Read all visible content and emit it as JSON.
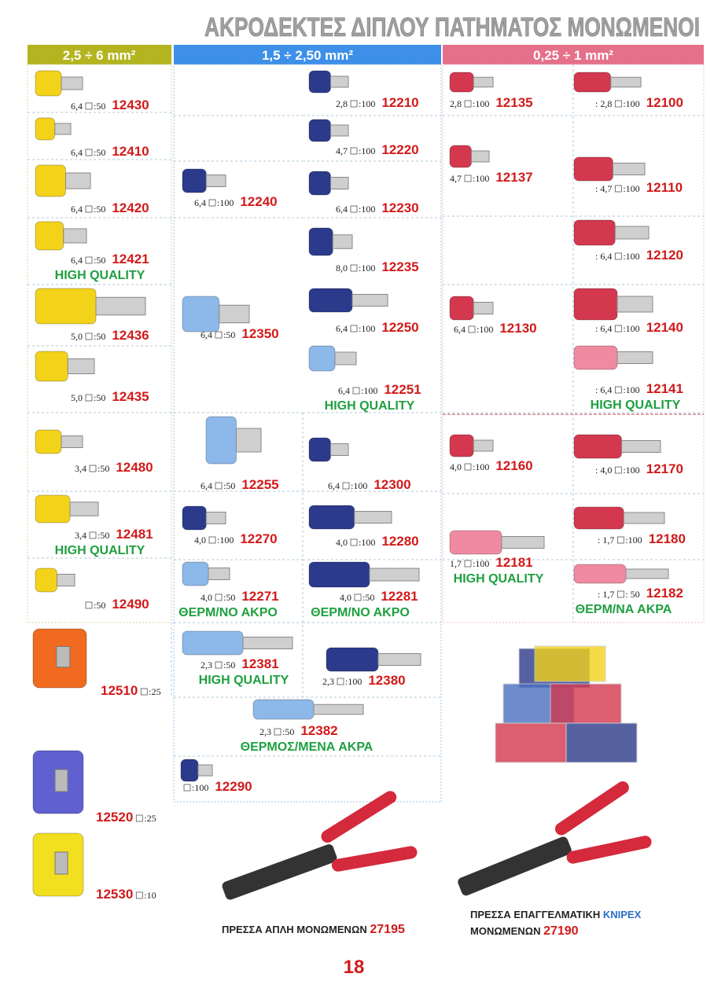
{
  "header": {
    "title": "ΑΚΡΟΔΕΚΤΕΣ ΔΙΠΛΟΥ ΠΑΤΗΜΑΤΟΣ ΜΟΝΩΜΕΝΟΙ"
  },
  "columns": [
    "2,5 ÷  6 mm²",
    "1,5 ÷  2,50 mm²",
    "0,25 ÷  1 mm²"
  ],
  "items": [
    {
      "size": "6,4",
      "qty": ":50",
      "code": "12430"
    },
    {
      "size": "6,4",
      "qty": ":50",
      "code": "12410"
    },
    {
      "size": "6,4",
      "qty": ":50",
      "code": "12420"
    },
    {
      "size": "6,4",
      "qty": ":50",
      "code": "12421",
      "badge": "HIGH QUALITY"
    },
    {
      "size": "5,0",
      "qty": ":50",
      "code": "12436"
    },
    {
      "size": "5,0",
      "qty": ":50",
      "code": "12435"
    },
    {
      "size": "3,4",
      "qty": ":50",
      "code": "12480"
    },
    {
      "size": "3,4",
      "qty": ":50",
      "code": "12481",
      "badge": "HIGH QUALITY"
    },
    {
      "qty": ":50",
      "code": "12490"
    },
    {
      "size": "6,4",
      "qty": ":100",
      "code": "12240"
    },
    {
      "size": "6,4",
      "qty": ":50",
      "code": "12350"
    },
    {
      "size": "6,4",
      "qty": ":50",
      "code": "12255"
    },
    {
      "size": "4,0",
      "qty": ":100",
      "code": "12270"
    },
    {
      "size": "4,0",
      "qty": ":50",
      "code": "12271",
      "badge": "ΘΕΡΜ/ΝΟ ΑΚΡΟ"
    },
    {
      "size": "2,3",
      "qty": ":50",
      "code": "12381",
      "badge": "HIGH QUALITY"
    },
    {
      "size": "2,3",
      "qty": ":50",
      "code": "12382",
      "badge": "ΘΕΡΜΟΣ/ΜΕΝΑ ΑΚΡΑ"
    },
    {
      "qty": ":100",
      "code": "12290"
    },
    {
      "size": "2,8",
      "qty": ":100",
      "code": "12210"
    },
    {
      "size": "4,7",
      "qty": ":100",
      "code": "12220"
    },
    {
      "size": "6,4",
      "qty": ":100",
      "code": "12230"
    },
    {
      "size": "8,0",
      "qty": ":100",
      "code": "12235"
    },
    {
      "size": "6,4",
      "qty": ":100",
      "code": "12250"
    },
    {
      "size": "6,4",
      "qty": ":100",
      "code": "12251",
      "badge": "HIGH QUALITY"
    },
    {
      "size": "6,4",
      "qty": ":100",
      "code": "12300"
    },
    {
      "size": "4,0",
      "qty": ":100",
      "code": "12280"
    },
    {
      "size": "4,0",
      "qty": ":50",
      "code": "12281",
      "badge": "ΘΕΡΜ/ΝΟ ΑΚΡΟ"
    },
    {
      "size": "2,3",
      "qty": ":100",
      "code": "12380"
    },
    {
      "size": "2,8",
      "qty": ":100",
      "code": "12135"
    },
    {
      "size": "4,7",
      "qty": ":100",
      "code": "12137"
    },
    {
      "size": "6,4",
      "qty": ":100",
      "code": "12130"
    },
    {
      "size": "4,0",
      "qty": ":100",
      "code": "12160"
    },
    {
      "size": "1,7",
      "qty": ":100",
      "code": "12181",
      "badge": "HIGH QUALITY"
    },
    {
      "size": ": 2,8",
      "qty": ":100",
      "code": "12100"
    },
    {
      "size": ": 4,7",
      "qty": ":100",
      "code": "12110"
    },
    {
      "size": ": 6,4",
      "qty": ":100",
      "code": "12120"
    },
    {
      "size": ": 6,4",
      "qty": ":100",
      "code": "12140"
    },
    {
      "size": ": 6,4",
      "qty": ":100",
      "code": "12141",
      "badge": "HIGH QUALITY"
    },
    {
      "size": ": 4,0",
      "qty": ":100",
      "code": "12170"
    },
    {
      "size": ": 1,7",
      "qty": ":100",
      "code": "12180"
    },
    {
      "size": ": 1,7",
      "qty": ": 50",
      "code": "12182",
      "badge": "ΘΕΡΜ/ΝΑ ΑΚΡΑ"
    },
    {
      "qty": ":25",
      "code": "12510"
    },
    {
      "qty": ":25",
      "code": "12520"
    },
    {
      "qty": ":10",
      "code": "12530"
    }
  ],
  "tools": [
    {
      "label": "ΠΡΕΣΣΑ  ΑΠΛΗ  ΜΟΝΩΜΕΝΩΝ",
      "code": "27195"
    },
    {
      "label": "ΠΡΕΣΣΑ ΕΠΑΓΓΕΛΜΑΤΙΚΗ",
      "brand": "KNIPEX",
      "label2": "ΜΟΝΩΜΕΝΩΝ",
      "code": "27190"
    }
  ],
  "footer": {
    "page": "18"
  }
}
